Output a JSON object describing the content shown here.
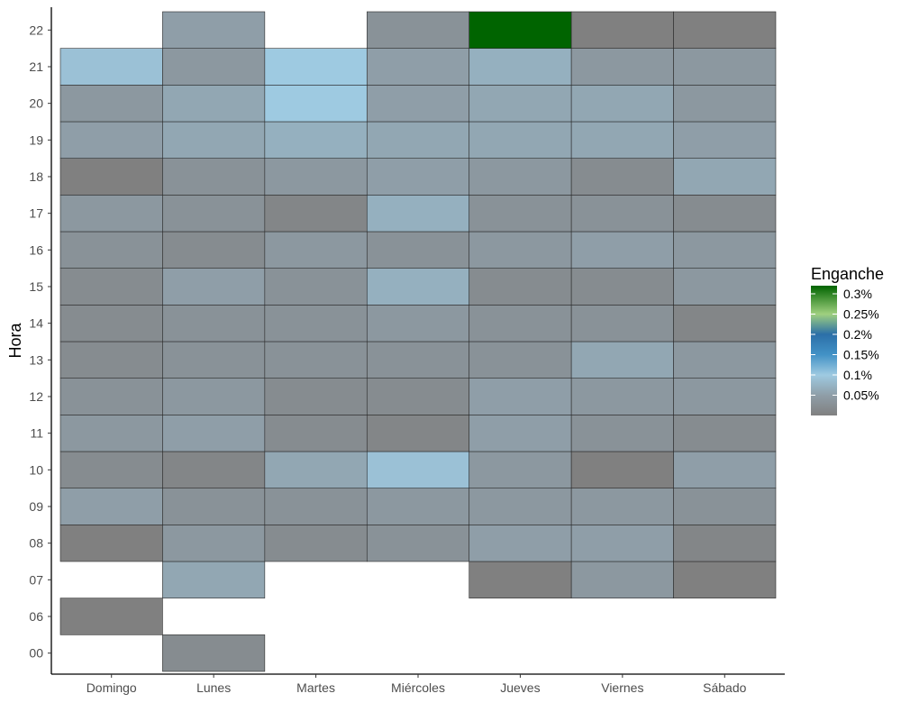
{
  "chart_data": {
    "type": "heatmap",
    "title": "",
    "xlabel": "",
    "ylabel": "Hora",
    "x_categories": [
      "Domingo",
      "Lunes",
      "Martes",
      "Miércoles",
      "Jueves",
      "Viernes",
      "Sábado"
    ],
    "y_categories": [
      "00",
      "06",
      "07",
      "08",
      "09",
      "10",
      "11",
      "12",
      "13",
      "14",
      "15",
      "16",
      "17",
      "18",
      "19",
      "20",
      "21",
      "22"
    ],
    "legend": {
      "title": "Enganche",
      "placement": "right",
      "range": [
        0,
        0.32
      ],
      "ticks": [
        {
          "value": 0.05,
          "label": "0.05%"
        },
        {
          "value": 0.1,
          "label": "0.1%"
        },
        {
          "value": 0.15,
          "label": "0.15%"
        },
        {
          "value": 0.2,
          "label": "0.2%"
        },
        {
          "value": 0.25,
          "label": "0.25%"
        },
        {
          "value": 0.3,
          "label": "0.3%"
        }
      ],
      "color_stops": [
        {
          "value": 0.0,
          "color": "#808080"
        },
        {
          "value": 0.05,
          "color": "#8f9ea8"
        },
        {
          "value": 0.1,
          "color": "#9ecae1"
        },
        {
          "value": 0.15,
          "color": "#4292c6"
        },
        {
          "value": 0.2,
          "color": "#2b6fa8"
        },
        {
          "value": 0.25,
          "color": "#9fd07f"
        },
        {
          "value": 0.32,
          "color": "#006400"
        }
      ]
    },
    "grid": false,
    "cells": [
      {
        "x": "Lunes",
        "y": "00",
        "value": 0.02
      },
      {
        "x": "Domingo",
        "y": "06",
        "value": 0.0
      },
      {
        "x": "Lunes",
        "y": "07",
        "value": 0.06
      },
      {
        "x": "Jueves",
        "y": "07",
        "value": 0.0
      },
      {
        "x": "Viernes",
        "y": "07",
        "value": 0.04
      },
      {
        "x": "Sábado",
        "y": "07",
        "value": 0.0
      },
      {
        "x": "Domingo",
        "y": "08",
        "value": 0.0
      },
      {
        "x": "Lunes",
        "y": "08",
        "value": 0.04
      },
      {
        "x": "Martes",
        "y": "08",
        "value": 0.02
      },
      {
        "x": "Miércoles",
        "y": "08",
        "value": 0.03
      },
      {
        "x": "Jueves",
        "y": "08",
        "value": 0.05
      },
      {
        "x": "Viernes",
        "y": "08",
        "value": 0.05
      },
      {
        "x": "Sábado",
        "y": "08",
        "value": 0.01
      },
      {
        "x": "Domingo",
        "y": "09",
        "value": 0.05
      },
      {
        "x": "Lunes",
        "y": "09",
        "value": 0.03
      },
      {
        "x": "Martes",
        "y": "09",
        "value": 0.03
      },
      {
        "x": "Miércoles",
        "y": "09",
        "value": 0.04
      },
      {
        "x": "Jueves",
        "y": "09",
        "value": 0.04
      },
      {
        "x": "Viernes",
        "y": "09",
        "value": 0.04
      },
      {
        "x": "Sábado",
        "y": "09",
        "value": 0.03
      },
      {
        "x": "Domingo",
        "y": "10",
        "value": 0.02
      },
      {
        "x": "Lunes",
        "y": "10",
        "value": 0.01
      },
      {
        "x": "Martes",
        "y": "10",
        "value": 0.06
      },
      {
        "x": "Miércoles",
        "y": "10",
        "value": 0.09
      },
      {
        "x": "Jueves",
        "y": "10",
        "value": 0.04
      },
      {
        "x": "Viernes",
        "y": "10",
        "value": 0.0
      },
      {
        "x": "Sábado",
        "y": "10",
        "value": 0.05
      },
      {
        "x": "Domingo",
        "y": "11",
        "value": 0.04
      },
      {
        "x": "Lunes",
        "y": "11",
        "value": 0.05
      },
      {
        "x": "Martes",
        "y": "11",
        "value": 0.02
      },
      {
        "x": "Miércoles",
        "y": "11",
        "value": 0.01
      },
      {
        "x": "Jueves",
        "y": "11",
        "value": 0.05
      },
      {
        "x": "Viernes",
        "y": "11",
        "value": 0.03
      },
      {
        "x": "Sábado",
        "y": "11",
        "value": 0.02
      },
      {
        "x": "Domingo",
        "y": "12",
        "value": 0.03
      },
      {
        "x": "Lunes",
        "y": "12",
        "value": 0.04
      },
      {
        "x": "Martes",
        "y": "12",
        "value": 0.02
      },
      {
        "x": "Miércoles",
        "y": "12",
        "value": 0.02
      },
      {
        "x": "Jueves",
        "y": "12",
        "value": 0.05
      },
      {
        "x": "Viernes",
        "y": "12",
        "value": 0.04
      },
      {
        "x": "Sábado",
        "y": "12",
        "value": 0.04
      },
      {
        "x": "Domingo",
        "y": "13",
        "value": 0.02
      },
      {
        "x": "Lunes",
        "y": "13",
        "value": 0.03
      },
      {
        "x": "Martes",
        "y": "13",
        "value": 0.03
      },
      {
        "x": "Miércoles",
        "y": "13",
        "value": 0.03
      },
      {
        "x": "Jueves",
        "y": "13",
        "value": 0.03
      },
      {
        "x": "Viernes",
        "y": "13",
        "value": 0.06
      },
      {
        "x": "Sábado",
        "y": "13",
        "value": 0.04
      },
      {
        "x": "Domingo",
        "y": "14",
        "value": 0.02
      },
      {
        "x": "Lunes",
        "y": "14",
        "value": 0.03
      },
      {
        "x": "Martes",
        "y": "14",
        "value": 0.03
      },
      {
        "x": "Miércoles",
        "y": "14",
        "value": 0.04
      },
      {
        "x": "Jueves",
        "y": "14",
        "value": 0.03
      },
      {
        "x": "Viernes",
        "y": "14",
        "value": 0.03
      },
      {
        "x": "Sábado",
        "y": "14",
        "value": 0.01
      },
      {
        "x": "Domingo",
        "y": "15",
        "value": 0.02
      },
      {
        "x": "Lunes",
        "y": "15",
        "value": 0.05
      },
      {
        "x": "Martes",
        "y": "15",
        "value": 0.03
      },
      {
        "x": "Miércoles",
        "y": "15",
        "value": 0.07
      },
      {
        "x": "Jueves",
        "y": "15",
        "value": 0.02
      },
      {
        "x": "Viernes",
        "y": "15",
        "value": 0.02
      },
      {
        "x": "Sábado",
        "y": "15",
        "value": 0.04
      },
      {
        "x": "Domingo",
        "y": "16",
        "value": 0.03
      },
      {
        "x": "Lunes",
        "y": "16",
        "value": 0.02
      },
      {
        "x": "Martes",
        "y": "16",
        "value": 0.04
      },
      {
        "x": "Miércoles",
        "y": "16",
        "value": 0.03
      },
      {
        "x": "Jueves",
        "y": "16",
        "value": 0.04
      },
      {
        "x": "Viernes",
        "y": "16",
        "value": 0.05
      },
      {
        "x": "Sábado",
        "y": "16",
        "value": 0.04
      },
      {
        "x": "Domingo",
        "y": "17",
        "value": 0.04
      },
      {
        "x": "Lunes",
        "y": "17",
        "value": 0.03
      },
      {
        "x": "Martes",
        "y": "17",
        "value": 0.01
      },
      {
        "x": "Miércoles",
        "y": "17",
        "value": 0.07
      },
      {
        "x": "Jueves",
        "y": "17",
        "value": 0.03
      },
      {
        "x": "Viernes",
        "y": "17",
        "value": 0.03
      },
      {
        "x": "Sábado",
        "y": "17",
        "value": 0.02
      },
      {
        "x": "Domingo",
        "y": "18",
        "value": 0.0
      },
      {
        "x": "Lunes",
        "y": "18",
        "value": 0.03
      },
      {
        "x": "Martes",
        "y": "18",
        "value": 0.04
      },
      {
        "x": "Miércoles",
        "y": "18",
        "value": 0.05
      },
      {
        "x": "Jueves",
        "y": "18",
        "value": 0.04
      },
      {
        "x": "Viernes",
        "y": "18",
        "value": 0.02
      },
      {
        "x": "Sábado",
        "y": "18",
        "value": 0.06
      },
      {
        "x": "Domingo",
        "y": "19",
        "value": 0.05
      },
      {
        "x": "Lunes",
        "y": "19",
        "value": 0.06
      },
      {
        "x": "Martes",
        "y": "19",
        "value": 0.07
      },
      {
        "x": "Miércoles",
        "y": "19",
        "value": 0.06
      },
      {
        "x": "Jueves",
        "y": "19",
        "value": 0.06
      },
      {
        "x": "Viernes",
        "y": "19",
        "value": 0.06
      },
      {
        "x": "Sábado",
        "y": "19",
        "value": 0.05
      },
      {
        "x": "Domingo",
        "y": "20",
        "value": 0.04
      },
      {
        "x": "Lunes",
        "y": "20",
        "value": 0.06
      },
      {
        "x": "Martes",
        "y": "20",
        "value": 0.1
      },
      {
        "x": "Miércoles",
        "y": "20",
        "value": 0.05
      },
      {
        "x": "Jueves",
        "y": "20",
        "value": 0.06
      },
      {
        "x": "Viernes",
        "y": "20",
        "value": 0.06
      },
      {
        "x": "Sábado",
        "y": "20",
        "value": 0.04
      },
      {
        "x": "Domingo",
        "y": "21",
        "value": 0.09
      },
      {
        "x": "Lunes",
        "y": "21",
        "value": 0.04
      },
      {
        "x": "Martes",
        "y": "21",
        "value": 0.1
      },
      {
        "x": "Miércoles",
        "y": "21",
        "value": 0.05
      },
      {
        "x": "Jueves",
        "y": "21",
        "value": 0.07
      },
      {
        "x": "Viernes",
        "y": "21",
        "value": 0.04
      },
      {
        "x": "Sábado",
        "y": "21",
        "value": 0.04
      },
      {
        "x": "Lunes",
        "y": "22",
        "value": 0.05
      },
      {
        "x": "Miércoles",
        "y": "22",
        "value": 0.03
      },
      {
        "x": "Jueves",
        "y": "22",
        "value": 0.32
      },
      {
        "x": "Viernes",
        "y": "22",
        "value": 0.0
      },
      {
        "x": "Sábado",
        "y": "22",
        "value": 0.0
      }
    ]
  }
}
